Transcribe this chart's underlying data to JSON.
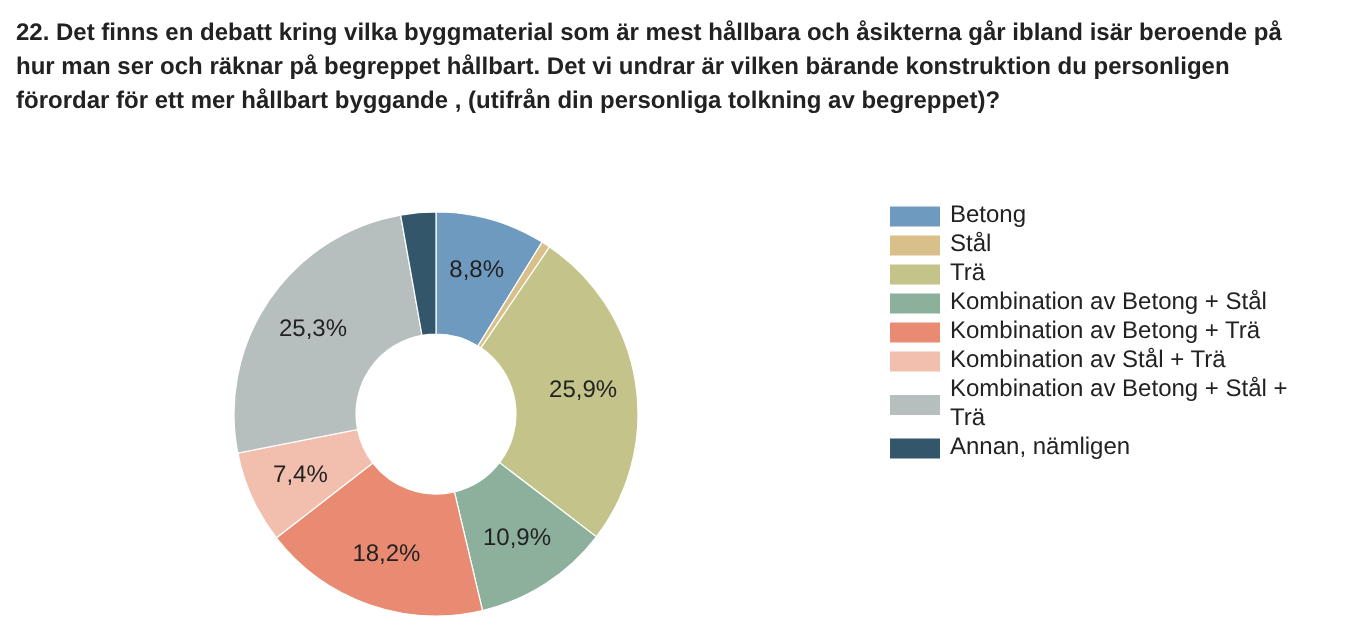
{
  "chart_data": {
    "type": "donut",
    "title": "22. Det finns en debatt kring vilka byggmaterial som är mest hållbara och åsikterna går ibland isär beroende på hur man ser och räknar på begreppet hållbart. Det vi undrar är vilken bärande konstruktion du personligen förordar för ett mer hållbart byggande , (utifrån din personliga tolkning av begreppet)?",
    "categories": [
      "Betong",
      "Stål",
      "Trä",
      "Kombination av Betong + Stål",
      "Kombination av Betong + Trä",
      "Kombination av Stål + Trä",
      "Kombination av Betong + Stål + Trä",
      "Annan, nämligen"
    ],
    "values": [
      8.8,
      0.7,
      25.9,
      10.9,
      18.2,
      7.4,
      25.3,
      2.8
    ],
    "value_labels": [
      "8,8%",
      null,
      "25,9%",
      "10,9%",
      "18,2%",
      "7,4%",
      "25,3%",
      null
    ],
    "colors": [
      "#6f9ac0",
      "#d9c08a",
      "#c4c48a",
      "#8cb09c",
      "#e98b72",
      "#f2bfae",
      "#b7bebe",
      "#34566a"
    ],
    "legend": "right"
  }
}
